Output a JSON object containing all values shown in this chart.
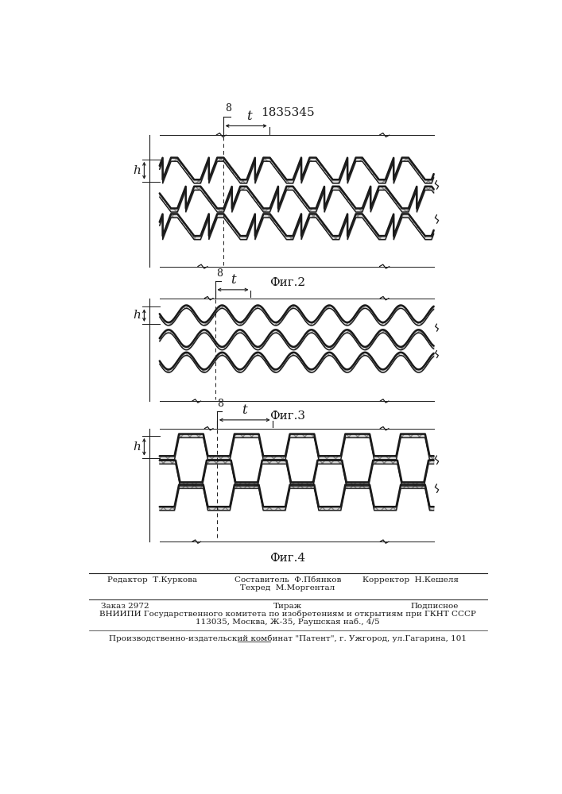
{
  "title_patent": "1835345",
  "fig2_label": "Фиг.2",
  "fig3_label": "Фиг.3",
  "fig4_label": "Фиг.4",
  "bg_color": "#ffffff",
  "line_color": "#1a1a1a",
  "footer_editor": "Редактор  Т.Куркова",
  "footer_comp": "Составитель  Ф.Пбянков",
  "footer_tech": "Техред  М.Моргентал",
  "footer_corr": "Корректор  Н.Кешеля",
  "footer_order": "Заказ 2972",
  "footer_tirazh": "Тираж",
  "footer_podp": "Подписное",
  "footer_vniip": "ВНИИПИ Государственного комитета по изобретениям и открытиям при ГКНТ СССР",
  "footer_addr": "113035, Москва, Ж-35, Раушская наб., 4/5",
  "footer_patent": "Производственно-издательский комбинат \"Патент\", г. Ужгород, ул.Гагарина, 101"
}
